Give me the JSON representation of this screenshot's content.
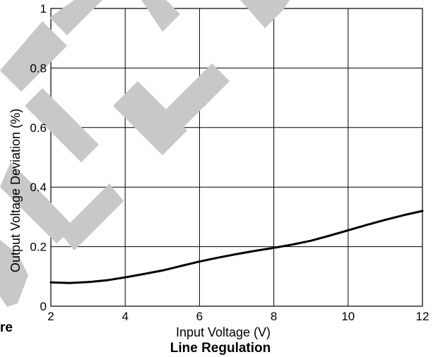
{
  "chart_data": {
    "type": "line",
    "title": "Line Regulation",
    "xlabel": "Input Voltage (V)",
    "ylabel": "Output Voltage Deviation (%)",
    "xlim": [
      2,
      12
    ],
    "ylim": [
      0,
      1
    ],
    "xticks": [
      2,
      4,
      6,
      8,
      10,
      12
    ],
    "yticks": [
      0,
      0.2,
      0.4,
      0.6,
      0.8,
      1
    ],
    "xtick_labels": [
      "2",
      "4",
      "6",
      "8",
      "10",
      "12"
    ],
    "ytick_labels": [
      "0",
      "0.2",
      "0.4",
      "0.6",
      "0.8",
      "1"
    ],
    "grid": true,
    "series": [
      {
        "color": "#000000",
        "x": [
          2,
          2.5,
          3,
          3.5,
          4,
          4.5,
          5,
          5.5,
          6,
          6.5,
          7,
          7.5,
          8,
          8.5,
          9,
          9.5,
          10,
          10.5,
          11,
          11.5,
          12
        ],
        "y": [
          0.08,
          0.078,
          0.081,
          0.087,
          0.097,
          0.108,
          0.12,
          0.135,
          0.15,
          0.163,
          0.175,
          0.186,
          0.196,
          0.207,
          0.22,
          0.237,
          0.255,
          0.273,
          0.29,
          0.306,
          0.32
        ]
      }
    ]
  },
  "side_text": "re",
  "watermark_color": "#c8c8c8"
}
